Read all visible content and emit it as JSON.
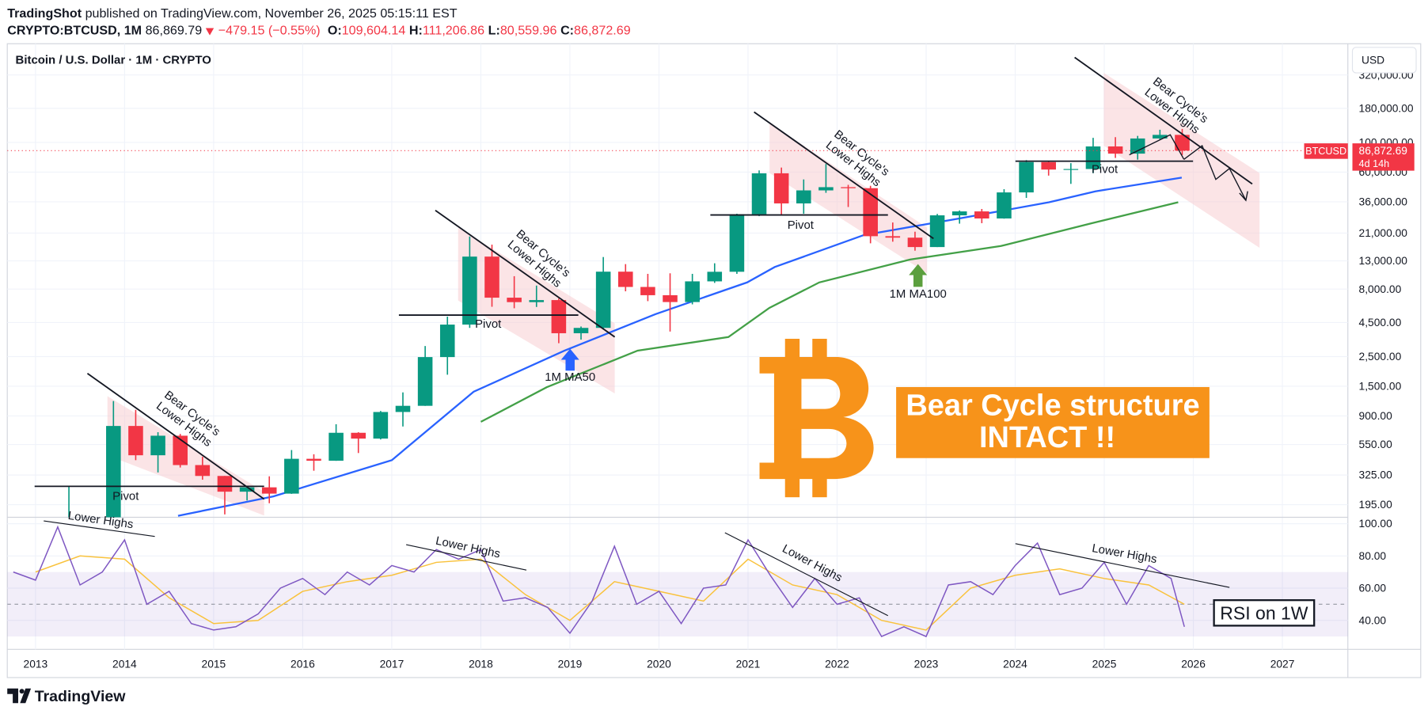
{
  "header": {
    "publisher": "TradingShot",
    "published": "published on TradingView.com, November 26, 2025 05:15:11 EST",
    "symbol": "CRYPTO:BTCUSD, 1M",
    "price": "86,869.79",
    "change": "−479.15 (−0.55%)",
    "ohlc": [
      {
        "label": "O:",
        "value": "109,604.14"
      },
      {
        "label": "H:",
        "value": "111,206.86"
      },
      {
        "label": "L:",
        "value": "80,559.96"
      },
      {
        "label": "C:",
        "value": "86,872.69"
      }
    ]
  },
  "chart_data": [
    {
      "type": "candlestick",
      "title": "Bitcoin / U.S. Dollar · 1M · CRYPTO",
      "currency": "USD",
      "log_scale": true,
      "grid": true,
      "up_color": "#089981",
      "down_color": "#f23645",
      "x": [
        2013.375,
        2013.625,
        2013.875,
        2014.125,
        2014.375,
        2014.625,
        2014.875,
        2015.125,
        2015.375,
        2015.625,
        2015.875,
        2016.125,
        2016.375,
        2016.625,
        2016.875,
        2017.125,
        2017.375,
        2017.625,
        2017.875,
        2018.125,
        2018.375,
        2018.625,
        2018.875,
        2019.125,
        2019.375,
        2019.625,
        2019.875,
        2020.125,
        2020.375,
        2020.625,
        2020.875,
        2021.125,
        2021.375,
        2021.625,
        2021.875,
        2022.125,
        2022.375,
        2022.625,
        2022.875,
        2023.125,
        2023.375,
        2023.625,
        2023.875,
        2024.125,
        2024.375,
        2024.625,
        2024.875,
        2025.125,
        2025.375,
        2025.625,
        2025.875
      ],
      "open": [
        93,
        97,
        125,
        757,
        457,
        640,
        386,
        320,
        244,
        263,
        236,
        430,
        416,
        673,
        609,
        963,
        1071,
        2480,
        4340,
        14000,
        6900,
        6390,
        6620,
        3740,
        4100,
        10800,
        8300,
        7200,
        6400,
        9140,
        10780,
        28990,
        58800,
        35000,
        43800,
        46300,
        45500,
        19900,
        19400,
        16500,
        28500,
        30500,
        27000,
        42300,
        71300,
        62700,
        63300,
        93400,
        82500,
        107100,
        114000
      ],
      "high": [
        266,
        140,
        1163,
        1000,
        680,
        660,
        445,
        320,
        265,
        318,
        500,
        465,
        780,
        680,
        980,
        1350,
        3000,
        4980,
        19800,
        17200,
        9990,
        8500,
        6800,
        4200,
        13900,
        12300,
        10400,
        10500,
        10400,
        12480,
        29300,
        61800,
        64900,
        52900,
        69000,
        48200,
        47400,
        25200,
        21500,
        29200,
        31000,
        31800,
        44700,
        73800,
        72800,
        70000,
        108300,
        109600,
        112000,
        124500,
        126200
      ],
      "low": [
        65,
        65,
        120,
        420,
        340,
        370,
        300,
        165,
        210,
        200,
        235,
        350,
        415,
        475,
        600,
        750,
        1070,
        1830,
        4100,
        5900,
        5750,
        5880,
        3150,
        3350,
        4050,
        7700,
        6500,
        3850,
        6150,
        8900,
        10400,
        28100,
        28800,
        29300,
        42000,
        32900,
        17600,
        18100,
        15500,
        16500,
        24700,
        24900,
        26900,
        38500,
        56500,
        49000,
        58900,
        76600,
        74400,
        105000,
        80560
      ],
      "close": [
        97,
        125,
        757,
        457,
        640,
        386,
        320,
        244,
        263,
        236,
        430,
        416,
        673,
        609,
        963,
        1071,
        2480,
        4340,
        14000,
        6900,
        6390,
        6620,
        3740,
        4100,
        10800,
        8300,
        7200,
        6400,
        9140,
        10780,
        28990,
        58800,
        35000,
        43800,
        46300,
        45500,
        19900,
        19400,
        16500,
        28500,
        30500,
        27000,
        42300,
        71300,
        62700,
        63300,
        93400,
        82500,
        107100,
        114000,
        86870
      ],
      "lines": [
        {
          "color": "#2962ff",
          "x": [
            2014.6,
            2015.67,
            2017.0,
            2017.92,
            2018.94,
            2019.96,
            2020.99,
            2021.3,
            2022.3,
            2023.36,
            2024.38,
            2024.9,
            2025.87
          ],
          "values": [
            161,
            225,
            420,
            1365,
            2770,
            5190,
            8980,
            11700,
            20300,
            26900,
            35700,
            43100,
            54600
          ]
        },
        {
          "color": "#43a047",
          "x": [
            2018.0,
            2018.74,
            2019.76,
            2020.78,
            2021.24,
            2021.8,
            2022.82,
            2023.84,
            2024.86,
            2025.83
          ],
          "values": [
            813,
            1475,
            2770,
            3500,
            5780,
            8970,
            13300,
            16800,
            24900,
            35700
          ]
        }
      ],
      "xlim": [
        2012.683,
        2027.735
      ],
      "xticks": [
        2013,
        2014,
        2015,
        2016,
        2017,
        2018,
        2019,
        2020,
        2021,
        2022,
        2023,
        2024,
        2025,
        2026,
        2027
      ],
      "ylim": [
        157,
        548000
      ],
      "yticks": [
        {
          "value": 195,
          "label": "195.00"
        },
        {
          "value": 325,
          "label": "325.00"
        },
        {
          "value": 550,
          "label": "550.00"
        },
        {
          "value": 900,
          "label": "900.00"
        },
        {
          "value": 1500,
          "label": "1,500.00"
        },
        {
          "value": 2500,
          "label": "2,500.00"
        },
        {
          "value": 4500,
          "label": "4,500.00"
        },
        {
          "value": 8000,
          "label": "8,000.00"
        },
        {
          "value": 13000,
          "label": "13,000.00"
        },
        {
          "value": 21000,
          "label": "21,000.00"
        },
        {
          "value": 36000,
          "label": "36,000.00"
        },
        {
          "value": 60000,
          "label": "60,000.00"
        },
        {
          "value": 100000,
          "label": "100,000.00"
        },
        {
          "value": 180000,
          "label": "180,000.00"
        },
        {
          "value": 320000,
          "label": "320,000.00"
        }
      ],
      "last_price": {
        "value": 86872.69,
        "label": "86,872.69"
      },
      "price_tag": "BTCUSD",
      "countdown": "4d 14h",
      "bear_labels": [
        [
          "Bear Cycle's",
          "Lower Highs"
        ],
        [
          "Bear Cycle's",
          "Lower Highs"
        ],
        [
          "Bear Cycle's",
          "Lower Highs"
        ],
        [
          "Bear Cycle's",
          "Lower Highs"
        ]
      ],
      "pivot_labels": [
        "Pivot",
        "Pivot",
        "Pivot",
        "Pivot"
      ],
      "ma_labels": [
        "1M MA50",
        "1M MA100"
      ],
      "banner": [
        "Bear Cycle structure",
        "INTACT !!"
      ]
    },
    {
      "type": "line",
      "grid": true,
      "series": [
        {
          "color": "#7e57c2",
          "x": [
            2012.75,
            2013.0,
            2013.25,
            2013.5,
            2013.75,
            2014.0,
            2014.25,
            2014.5,
            2014.75,
            2015.0,
            2015.25,
            2015.5,
            2015.75,
            2016.0,
            2016.25,
            2016.5,
            2016.75,
            2017.0,
            2017.25,
            2017.5,
            2017.75,
            2018.0,
            2018.25,
            2018.5,
            2018.75,
            2019.0,
            2019.25,
            2019.5,
            2019.75,
            2020.0,
            2020.25,
            2020.5,
            2020.75,
            2021.0,
            2021.25,
            2021.5,
            2021.75,
            2022.0,
            2022.25,
            2022.5,
            2022.75,
            2023.0,
            2023.25,
            2023.5,
            2023.75,
            2024.0,
            2024.25,
            2024.5,
            2024.75,
            2025.0,
            2025.25,
            2025.5,
            2025.75,
            2025.9
          ],
          "values": [
            70,
            65,
            98,
            62,
            70,
            90,
            50,
            58,
            38,
            34,
            36,
            44,
            60,
            66,
            56,
            70,
            62,
            74,
            70,
            84,
            78,
            84,
            52,
            54,
            48,
            32,
            52,
            86,
            50,
            58,
            38,
            60,
            62,
            90,
            68,
            48,
            66,
            50,
            54,
            30,
            36,
            30,
            62,
            64,
            56,
            74,
            88,
            56,
            60,
            76,
            50,
            74,
            66,
            36
          ]
        },
        {
          "color": "#f9c23c",
          "x": [
            2013.0,
            2013.5,
            2014.0,
            2014.5,
            2015.0,
            2015.5,
            2016.0,
            2016.5,
            2017.0,
            2017.5,
            2018.0,
            2018.5,
            2019.0,
            2019.5,
            2020.0,
            2020.5,
            2021.0,
            2021.5,
            2022.0,
            2022.5,
            2023.0,
            2023.5,
            2024.0,
            2024.5,
            2025.0,
            2025.5,
            2025.9
          ],
          "values": [
            70,
            80,
            78,
            54,
            38,
            40,
            58,
            64,
            68,
            76,
            78,
            56,
            40,
            64,
            58,
            52,
            78,
            62,
            56,
            40,
            34,
            60,
            68,
            72,
            66,
            62,
            50
          ]
        }
      ],
      "ylim": [
        22,
        104
      ],
      "yticks": [
        {
          "value": 40,
          "label": "40.00"
        },
        {
          "value": 60,
          "label": "60.00"
        },
        {
          "value": 80,
          "label": "80.00"
        },
        {
          "value": 100,
          "label": "100.00"
        }
      ],
      "band": [
        30,
        70
      ],
      "band_color": "#7e57c2",
      "mid": 50,
      "trend_labels": [
        "Lower Highs",
        "Lower Highs",
        "Lower Highs",
        "Lower Highs"
      ],
      "note": "RSI on 1W"
    }
  ],
  "footer": {
    "brand": "TradingView"
  }
}
